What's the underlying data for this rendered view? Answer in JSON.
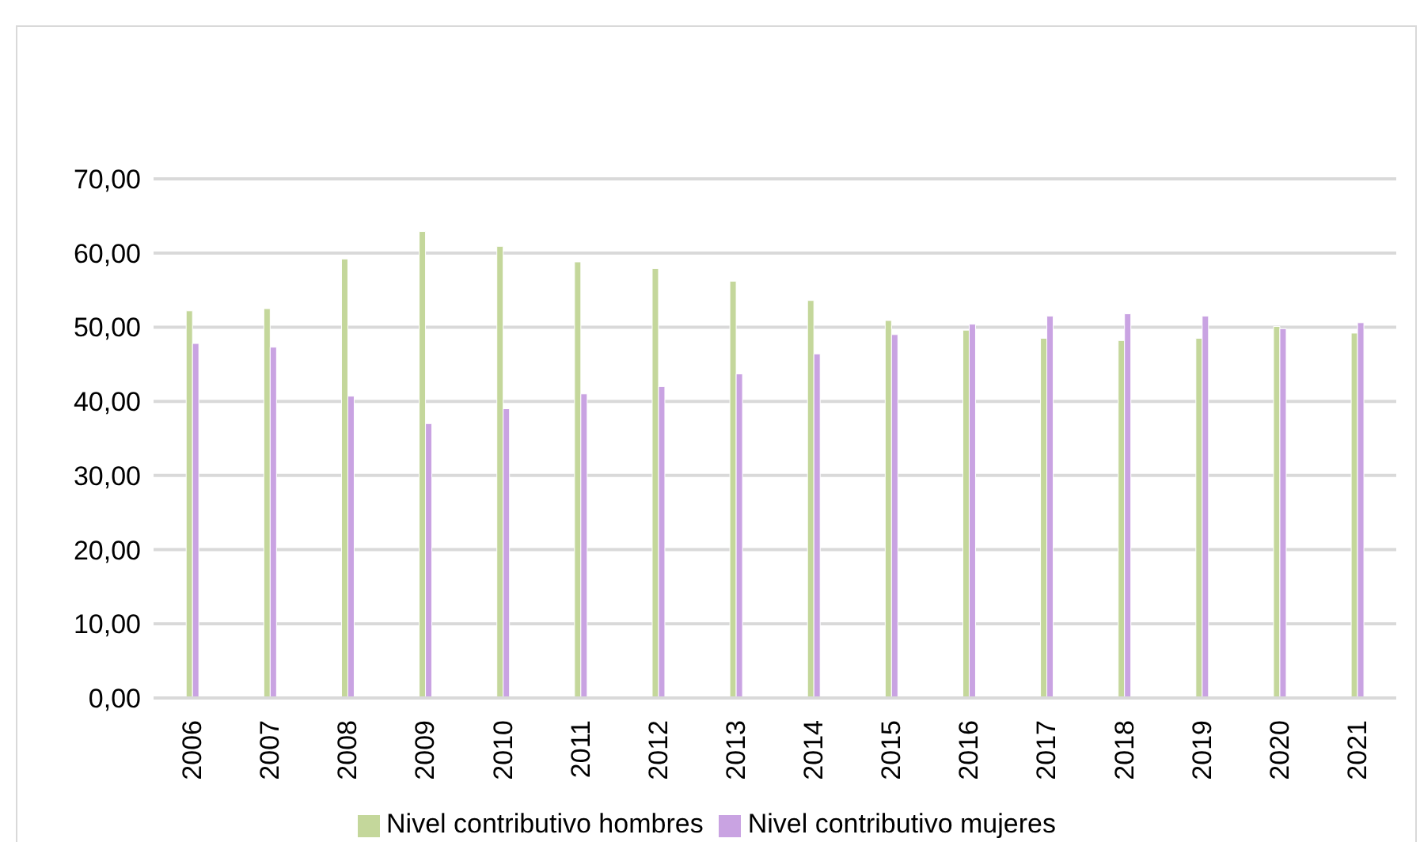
{
  "chart_data": {
    "type": "bar",
    "categories": [
      "2006",
      "2007",
      "2008",
      "2009",
      "2010",
      "2011",
      "2012",
      "2013",
      "2014",
      "2015",
      "2016",
      "2017",
      "2018",
      "2019",
      "2020",
      "2021"
    ],
    "series": [
      {
        "name": "Nivel contributivo hombres",
        "color": "#c4d79b",
        "values": [
          52.2,
          52.5,
          59.2,
          62.9,
          60.9,
          58.8,
          57.9,
          56.2,
          53.6,
          50.9,
          49.6,
          48.5,
          48.2,
          48.5,
          50.1,
          49.2
        ]
      },
      {
        "name": "Nivel contributivo mujeres",
        "color": "#c9a3e2",
        "values": [
          47.8,
          47.3,
          40.7,
          37.0,
          39.0,
          41.0,
          42.0,
          43.7,
          46.4,
          49.0,
          50.4,
          51.5,
          51.8,
          51.5,
          49.8,
          50.6
        ]
      }
    ],
    "ylim": [
      0,
      70
    ],
    "yticks": [
      {
        "value": 0,
        "label": "0,00"
      },
      {
        "value": 10,
        "label": "10,00"
      },
      {
        "value": 20,
        "label": "20,00"
      },
      {
        "value": 30,
        "label": "30,00"
      },
      {
        "value": 40,
        "label": "40,00"
      },
      {
        "value": 50,
        "label": "50,00"
      },
      {
        "value": 60,
        "label": "60,00"
      },
      {
        "value": 70,
        "label": "70,00"
      }
    ],
    "grid": "y",
    "legend": "bottom"
  }
}
